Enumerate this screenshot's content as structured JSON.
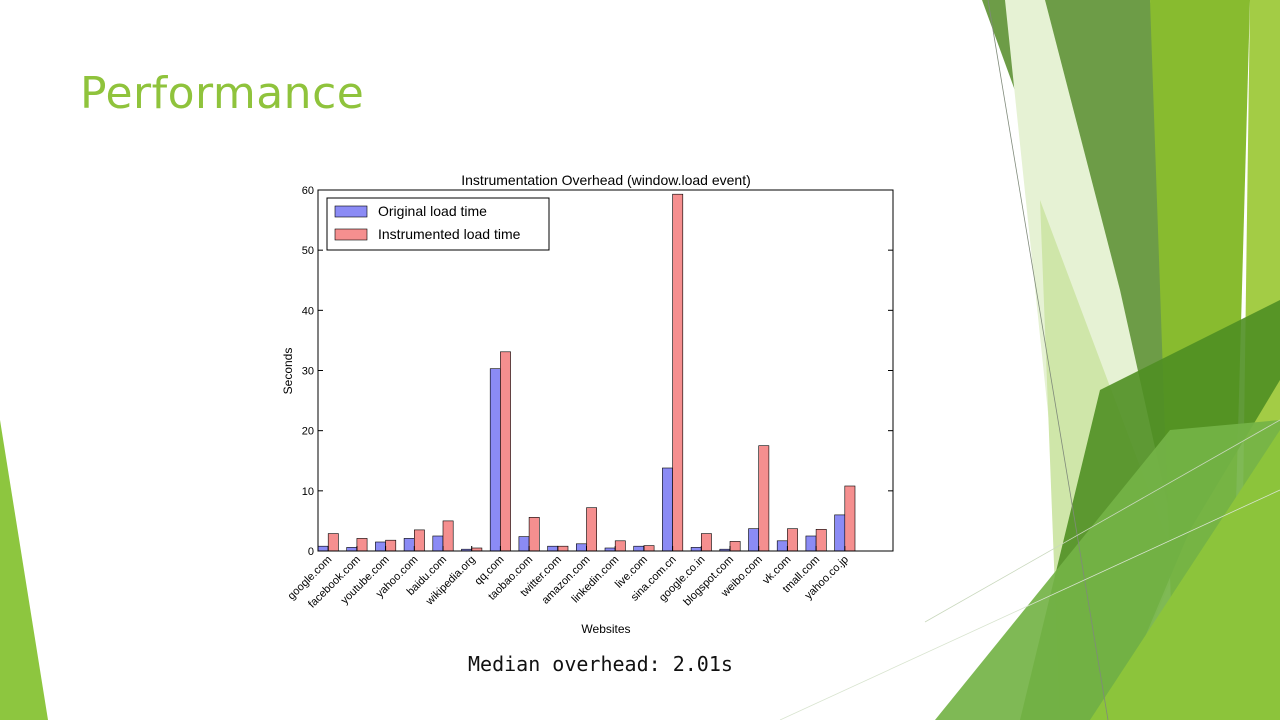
{
  "slide": {
    "title": "Performance",
    "caption": "Median overhead: 2.01s"
  },
  "theme": {
    "accent": "#8fc33c",
    "original_color": "#8b8bf5",
    "instrumented_color": "#f58f8f"
  },
  "chart_data": {
    "type": "bar",
    "title": "Instrumentation Overhead  (window.load event)",
    "xlabel": "Websites",
    "ylabel": "Seconds",
    "ylim": [
      0,
      60
    ],
    "yticks": [
      0,
      10,
      20,
      30,
      40,
      50,
      60
    ],
    "legend_position": "top-left",
    "grid": false,
    "categories": [
      "google.com",
      "facebook.com",
      "youtube.com",
      "yahoo.com",
      "baidu.com",
      "wikipedia.org",
      "qq.com",
      "taobao.com",
      "twitter.com",
      "amazon.com",
      "linkedin.com",
      "live.com",
      "sina.com.cn",
      "google.co.in",
      "blogspot.com",
      "weibo.com",
      "vk.com",
      "tmall.com",
      "yahoo.co.jp"
    ],
    "series": [
      {
        "name": "Original load time",
        "color": "#8b8bf5",
        "values": [
          0.8,
          0.6,
          1.5,
          2.1,
          2.5,
          0.3,
          30.3,
          2.4,
          0.8,
          1.2,
          0.5,
          0.8,
          13.8,
          0.6,
          0.3,
          3.7,
          1.7,
          2.5,
          6.0
        ]
      },
      {
        "name": "Instrumented load time",
        "color": "#f58f8f",
        "values": [
          2.9,
          2.1,
          1.8,
          3.5,
          5.0,
          0.5,
          33.1,
          5.6,
          0.8,
          7.2,
          1.7,
          0.9,
          59.3,
          2.9,
          1.6,
          17.5,
          3.7,
          3.6,
          10.8
        ]
      }
    ]
  }
}
